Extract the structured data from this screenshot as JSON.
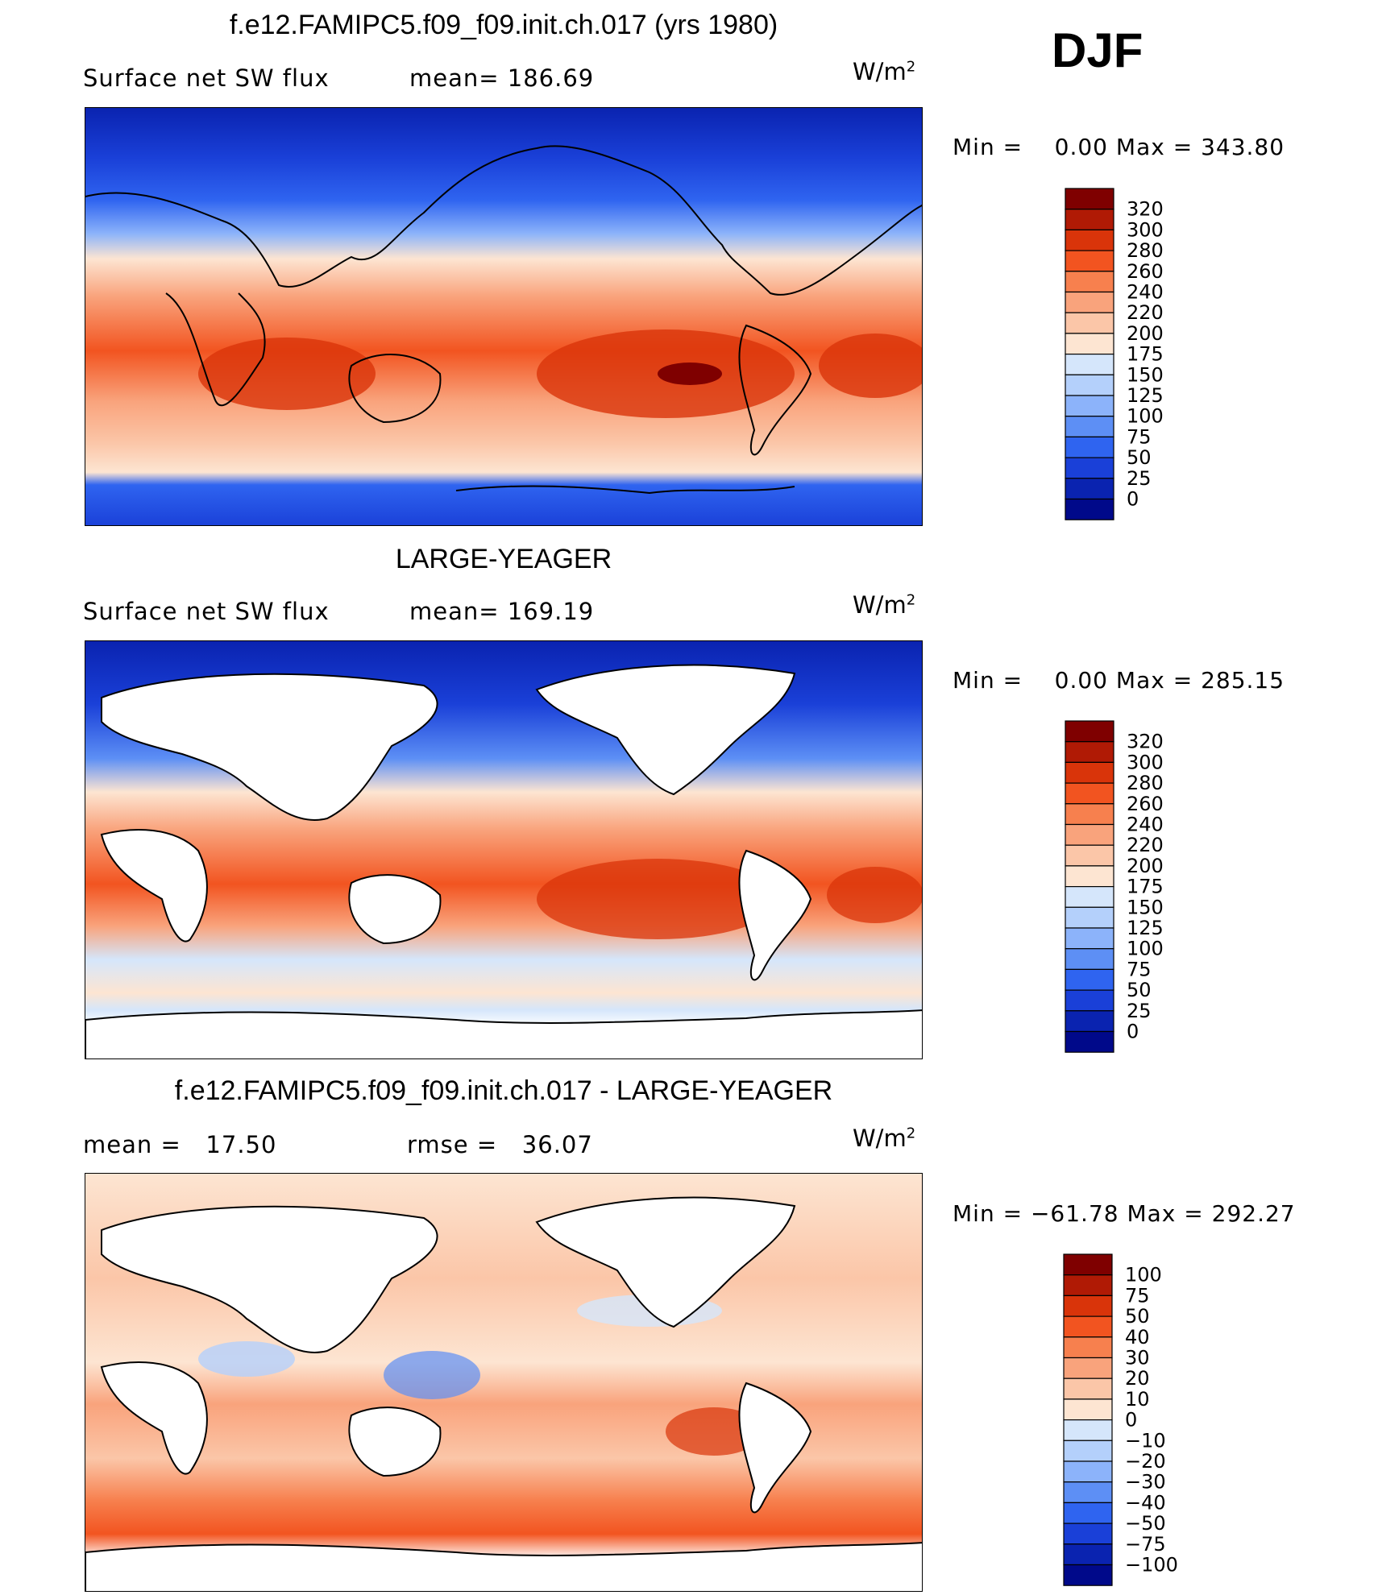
{
  "season": "DJF",
  "chart_data": [
    {
      "type": "heatmap",
      "title": "f.e12.FAMIPC5.f09_f09.init.ch.017 (yrs 1980)",
      "variable": "Surface net SW flux",
      "stat_label": "mean=",
      "stat_value": "186.69",
      "units_base": "W/m",
      "units_exp": "2",
      "min_label": "Min  =",
      "min_value": "0.00",
      "max_label": "Max  =",
      "max_value": "343.80",
      "levels": [
        "320",
        "300",
        "280",
        "260",
        "240",
        "220",
        "200",
        "175",
        "150",
        "125",
        "100",
        "75",
        "50",
        "25",
        "0"
      ],
      "colors": [
        "#7f0000",
        "#b01a05",
        "#d9340a",
        "#f25420",
        "#f7804e",
        "#f9a37c",
        "#fbc6a8",
        "#fde5d2",
        "#d5e6fb",
        "#b4d0fb",
        "#8cb3fa",
        "#5d8ff5",
        "#2f64f0",
        "#1a40d8",
        "#0a23b0",
        "#00098a"
      ]
    },
    {
      "type": "heatmap",
      "title": "LARGE-YEAGER",
      "variable": "Surface net SW flux",
      "stat_label": "mean=",
      "stat_value": "169.19",
      "units_base": "W/m",
      "units_exp": "2",
      "min_label": "Min  =",
      "min_value": "0.00",
      "max_label": "Max  =",
      "max_value": "285.15",
      "levels": [
        "320",
        "300",
        "280",
        "260",
        "240",
        "220",
        "200",
        "175",
        "150",
        "125",
        "100",
        "75",
        "50",
        "25",
        "0"
      ],
      "colors": [
        "#7f0000",
        "#b01a05",
        "#d9340a",
        "#f25420",
        "#f7804e",
        "#f9a37c",
        "#fbc6a8",
        "#fde5d2",
        "#d5e6fb",
        "#b4d0fb",
        "#8cb3fa",
        "#5d8ff5",
        "#2f64f0",
        "#1a40d8",
        "#0a23b0",
        "#00098a"
      ]
    },
    {
      "type": "heatmap",
      "title": "f.e12.FAMIPC5.f09_f09.init.ch.017 - LARGE-YEAGER",
      "stat_label": "mean  =",
      "stat_value": "17.50",
      "stat2_label": "rmse  =",
      "stat2_value": "36.07",
      "units_base": "W/m",
      "units_exp": "2",
      "min_label": "Min  =",
      "min_value": "−61.78",
      "max_label": "Max  =",
      "max_value": "292.27",
      "levels": [
        "100",
        "75",
        "50",
        "40",
        "30",
        "20",
        "10",
        "0",
        "−10",
        "−20",
        "−30",
        "−40",
        "−50",
        "−75",
        "−100"
      ],
      "colors": [
        "#7f0000",
        "#b01a05",
        "#d9340a",
        "#f25420",
        "#f7804e",
        "#f9a37c",
        "#fbc6a8",
        "#fde5d2",
        "#d5e6fb",
        "#b4d0fb",
        "#8cb3fa",
        "#5d8ff5",
        "#2f64f0",
        "#1a40d8",
        "#0a23b0",
        "#00098a"
      ]
    }
  ]
}
